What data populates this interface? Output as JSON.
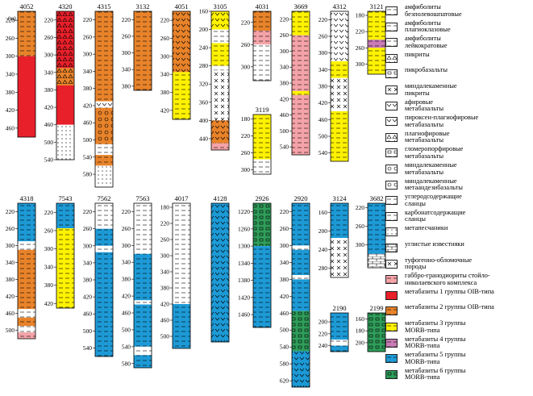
{
  "depth_unit": "(м)",
  "columns": [
    {
      "id": "4052",
      "ticks": [
        "220",
        "260",
        "300",
        "340",
        "380",
        "420",
        "460"
      ],
      "layers": [
        {
          "from": 200,
          "to": 300,
          "fill": "orange"
        },
        {
          "from": 300,
          "to": 480,
          "fill": "red"
        }
      ]
    },
    {
      "id": "4320",
      "ticks": [
        "220",
        "260",
        "300",
        "340",
        "380",
        "420",
        "460",
        "500",
        "540"
      ],
      "layers": [
        {
          "from": 200,
          "to": 330,
          "fill": "red-tri"
        },
        {
          "from": 330,
          "to": 370,
          "fill": "orange-tri"
        },
        {
          "from": 370,
          "to": 460,
          "fill": "red"
        },
        {
          "from": 460,
          "to": 540,
          "fill": "dots"
        }
      ]
    },
    {
      "id": "4315",
      "ticks": [
        "220",
        "260",
        "300",
        "340",
        "380",
        "420",
        "460",
        "500",
        "540",
        "580"
      ],
      "layers": [
        {
          "from": 200,
          "to": 410,
          "fill": "orange"
        },
        {
          "from": 410,
          "to": 425,
          "fill": "white-v"
        },
        {
          "from": 425,
          "to": 510,
          "fill": "orange-o"
        },
        {
          "from": 510,
          "to": 535,
          "fill": "white"
        },
        {
          "from": 535,
          "to": 560,
          "fill": "orange"
        },
        {
          "from": 560,
          "to": 610,
          "fill": "dots"
        }
      ]
    },
    {
      "id": "3132",
      "ticks": [
        "220",
        "260",
        "300",
        "340",
        "380"
      ],
      "layers": [
        {
          "from": 200,
          "to": 390,
          "fill": "orange"
        }
      ]
    },
    {
      "id": "4051",
      "ticks": [
        "220",
        "260",
        "300",
        "340",
        "380",
        "420"
      ],
      "layers": [
        {
          "from": 200,
          "to": 335,
          "fill": "orange-v"
        },
        {
          "from": 335,
          "to": 440,
          "fill": "yellow"
        }
      ]
    },
    {
      "id": "3105",
      "ticks": [
        "160",
        "200",
        "240",
        "280",
        "320",
        "360",
        "400",
        "440"
      ],
      "layers": [
        {
          "from": 160,
          "to": 200,
          "fill": "yellow-v"
        },
        {
          "from": 200,
          "to": 230,
          "fill": "white-dash"
        },
        {
          "from": 230,
          "to": 280,
          "fill": "yellow"
        },
        {
          "from": 280,
          "to": 290,
          "fill": "white"
        },
        {
          "from": 290,
          "to": 350,
          "fill": "white-x"
        },
        {
          "from": 350,
          "to": 400,
          "fill": "white-x"
        },
        {
          "from": 400,
          "to": 450,
          "fill": "orange-v"
        },
        {
          "from": 450,
          "to": 465,
          "fill": "pink"
        }
      ]
    },
    {
      "id": "4031",
      "ticks": [
        "220",
        "260",
        "300"
      ],
      "layers": [
        {
          "from": 200,
          "to": 235,
          "fill": "orange"
        },
        {
          "from": 235,
          "to": 260,
          "fill": "pink"
        },
        {
          "from": 260,
          "to": 325,
          "fill": "white-dash"
        }
      ]
    },
    {
      "id": "3119",
      "ticks": [
        "180",
        "220",
        "260",
        "300"
      ],
      "layers": [
        {
          "from": 170,
          "to": 275,
          "fill": "yellow"
        },
        {
          "from": 275,
          "to": 310,
          "fill": "white-dash"
        }
      ]
    },
    {
      "id": "3669",
      "ticks": [
        "220",
        "260",
        "300",
        "340",
        "380",
        "420",
        "460",
        "500",
        "540"
      ],
      "layers": [
        {
          "from": 200,
          "to": 260,
          "fill": "yellow"
        },
        {
          "from": 260,
          "to": 400,
          "fill": "pink"
        },
        {
          "from": 400,
          "to": 410,
          "fill": "yellow"
        },
        {
          "from": 410,
          "to": 560,
          "fill": "pink"
        }
      ]
    },
    {
      "id": "4312",
      "ticks": [
        "220",
        "260",
        "300",
        "340",
        "380",
        "420",
        "460",
        "500",
        "540"
      ],
      "layers": [
        {
          "from": 200,
          "to": 320,
          "fill": "white-v"
        },
        {
          "from": 320,
          "to": 360,
          "fill": "yellow"
        },
        {
          "from": 360,
          "to": 440,
          "fill": "white-x"
        },
        {
          "from": 440,
          "to": 560,
          "fill": "yellow"
        }
      ]
    },
    {
      "id": "3121",
      "ticks": [
        "180",
        "220",
        "260",
        "300"
      ],
      "layers": [
        {
          "from": 170,
          "to": 240,
          "fill": "yellow"
        },
        {
          "from": 240,
          "to": 260,
          "fill": "purple"
        },
        {
          "from": 260,
          "to": 325,
          "fill": "yellow"
        }
      ]
    },
    {
      "id": "4318",
      "ticks": [
        "220",
        "260",
        "300",
        "340",
        "380",
        "420",
        "460",
        "500"
      ],
      "layers": [
        {
          "from": 200,
          "to": 290,
          "fill": "blue"
        },
        {
          "from": 290,
          "to": 310,
          "fill": "white"
        },
        {
          "from": 310,
          "to": 450,
          "fill": "orange"
        },
        {
          "from": 450,
          "to": 470,
          "fill": "white"
        },
        {
          "from": 470,
          "to": 490,
          "fill": "orange"
        },
        {
          "from": 490,
          "to": 505,
          "fill": "white"
        },
        {
          "from": 505,
          "to": 520,
          "fill": "pink"
        }
      ]
    },
    {
      "id": "7543",
      "ticks": [
        "220",
        "260",
        "300",
        "340",
        "380",
        "420"
      ],
      "layers": [
        {
          "from": 200,
          "to": 255,
          "fill": "blue"
        },
        {
          "from": 255,
          "to": 430,
          "fill": "yellow"
        }
      ]
    },
    {
      "id": "7562",
      "ticks": [
        "220",
        "260",
        "300",
        "340",
        "380",
        "420",
        "460",
        "500",
        "540"
      ],
      "layers": [
        {
          "from": 200,
          "to": 260,
          "fill": "white-dash"
        },
        {
          "from": 260,
          "to": 300,
          "fill": "blue"
        },
        {
          "from": 300,
          "to": 315,
          "fill": "white"
        },
        {
          "from": 315,
          "to": 560,
          "fill": "blue"
        }
      ]
    },
    {
      "id": "7563",
      "ticks": [
        "220",
        "260",
        "300",
        "340",
        "380",
        "420",
        "460",
        "500",
        "540",
        "580"
      ],
      "layers": [
        {
          "from": 200,
          "to": 320,
          "fill": "white-dash"
        },
        {
          "from": 320,
          "to": 430,
          "fill": "blue"
        },
        {
          "from": 430,
          "to": 440,
          "fill": "white"
        },
        {
          "from": 440,
          "to": 540,
          "fill": "blue"
        },
        {
          "from": 540,
          "to": 560,
          "fill": "white"
        },
        {
          "from": 560,
          "to": 590,
          "fill": "blue"
        }
      ]
    },
    {
      "id": "4017",
      "ticks": [
        "180",
        "220",
        "260",
        "300",
        "340",
        "380",
        "420",
        "460",
        "500"
      ],
      "layers": [
        {
          "from": 170,
          "to": 420,
          "fill": "white-dash"
        },
        {
          "from": 420,
          "to": 530,
          "fill": "blue"
        }
      ]
    },
    {
      "id": "4128",
      "ticks": [],
      "layers": [
        {
          "from": 0,
          "to": 1,
          "fill": "blue-v"
        }
      ]
    },
    {
      "id": "2926",
      "ticks": [
        "1220",
        "1260",
        "1300",
        "1340",
        "1380",
        "1420",
        "1460"
      ],
      "layers": [
        {
          "from": 1200,
          "to": 1300,
          "fill": "green"
        },
        {
          "from": 1300,
          "to": 1490,
          "fill": "blue"
        }
      ]
    },
    {
      "id": "2920",
      "ticks": [
        "220",
        "260",
        "300",
        "340",
        "380",
        "420",
        "460",
        "500",
        "540",
        "580",
        "620"
      ],
      "layers": [
        {
          "from": 200,
          "to": 300,
          "fill": "blue"
        },
        {
          "from": 300,
          "to": 310,
          "fill": "white"
        },
        {
          "from": 310,
          "to": 370,
          "fill": "blue"
        },
        {
          "from": 370,
          "to": 380,
          "fill": "white"
        },
        {
          "from": 380,
          "to": 455,
          "fill": "blue"
        },
        {
          "from": 455,
          "to": 550,
          "fill": "green"
        },
        {
          "from": 550,
          "to": 635,
          "fill": "blue-v"
        }
      ]
    },
    {
      "id": "3124",
      "ticks": [
        "160",
        "200",
        "240",
        "280"
      ],
      "layers": [
        {
          "from": 140,
          "to": 215,
          "fill": "blue"
        },
        {
          "from": 215,
          "to": 300,
          "fill": "white-x"
        }
      ]
    },
    {
      "id": "3682",
      "ticks": [
        "220",
        "260",
        "300"
      ],
      "layers": [
        {
          "from": 210,
          "to": 320,
          "fill": "blue"
        },
        {
          "from": 320,
          "to": 350,
          "fill": "brick"
        }
      ]
    },
    {
      "id": "2190",
      "ticks": [
        "200",
        "220",
        "240"
      ],
      "layers": [
        {
          "from": 185,
          "to": 230,
          "fill": "blue"
        },
        {
          "from": 230,
          "to": 240,
          "fill": "white"
        },
        {
          "from": 240,
          "to": 250,
          "fill": "blue"
        }
      ]
    },
    {
      "id": "2199",
      "ticks": [
        "160",
        "180",
        "200"
      ],
      "layers": [
        {
          "from": 150,
          "to": 215,
          "fill": "green"
        }
      ]
    }
  ],
  "legend": [
    {
      "label": "амфиболиты\nбезполевошпатовые",
      "swatch": "white-dash"
    },
    {
      "label": "амфиболиты\nплагиоклазовые",
      "swatch": "white-dash"
    },
    {
      "label": "амфиболиты\nлейкократовые",
      "swatch": "white-dash"
    },
    {
      "label": "пикриты",
      "swatch": "white-tri"
    },
    {
      "label": "пикробазальты",
      "swatch": "white-box"
    },
    {
      "label": "миндалекаменные\nпикриты",
      "swatch": "white-x"
    },
    {
      "label": "афировые\nметабазальты",
      "swatch": "white-v"
    },
    {
      "label": "пироксен-плагиофировые\nметабазальты",
      "swatch": "white-v"
    },
    {
      "label": "плагиофировые\nметабазальты",
      "swatch": "white-tri"
    },
    {
      "label": "гломеропорфировые\nметабазальты",
      "swatch": "white-box"
    },
    {
      "label": "миндалекаменные\nметабазальты",
      "swatch": "white-o"
    },
    {
      "label": "миндалекаменные\nметаандезибазальты",
      "swatch": "white-o"
    },
    {
      "label": "углеродсодержащие\nсланцы",
      "swatch": "white-dash"
    },
    {
      "label": "карбонатсодержащие\nсланцы",
      "swatch": "white-dash"
    },
    {
      "label": "метапесчаники",
      "swatch": "dots"
    },
    {
      "label": "углистые известняки",
      "swatch": "brick"
    },
    {
      "label": "туфогенно-обломочные\nпороды",
      "swatch": "white-x"
    },
    {
      "label": "габбро-гранодиориты стойло-\nниколаевского комплекса",
      "swatch": "pink"
    },
    {
      "label": "метабазиты 1 группы OIB-типа",
      "swatch": "red"
    },
    {
      "label": "метабазиты 2 группы OIB-типа",
      "swatch": "orange"
    },
    {
      "label": "метабазиты 3 группы\nMORB-типа",
      "swatch": "yellow"
    },
    {
      "label": "метабазиты 4 группы\nMORB-типа",
      "swatch": "purple"
    },
    {
      "label": "метабазиты 5 группы\nMORB-типа",
      "swatch": "blue"
    },
    {
      "label": "метабазиты 6 группы\nMORB-типа",
      "swatch": "green"
    }
  ],
  "colors": {
    "red": "#e8202a",
    "orange": "#e8832a",
    "yellow": "#fff200",
    "pink": "#f4a3a8",
    "purple": "#c87bb4",
    "blue": "#1d9ad6",
    "green": "#2f9e5a",
    "white": "#ffffff"
  }
}
